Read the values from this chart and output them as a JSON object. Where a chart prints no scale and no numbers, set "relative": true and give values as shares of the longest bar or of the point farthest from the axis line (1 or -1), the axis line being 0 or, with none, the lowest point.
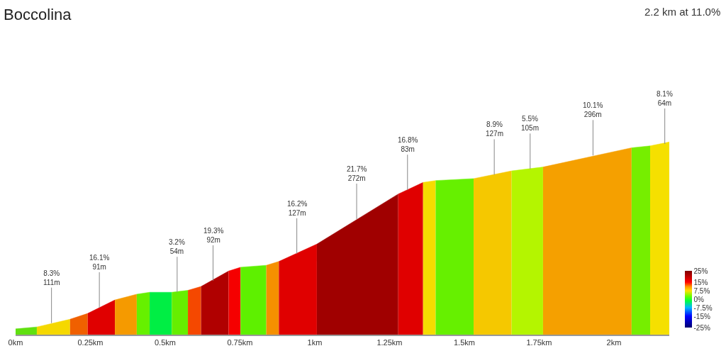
{
  "chart_data": {
    "type": "area",
    "title": "Boccolina",
    "subtitle": "2.2 km at 11.0%",
    "relative": true,
    "xlim": [
      0,
      2.185
    ],
    "xticks": [
      {
        "value": 0,
        "label": "0km"
      },
      {
        "value": 0.25,
        "label": "0.25km"
      },
      {
        "value": 0.5,
        "label": "0.5km"
      },
      {
        "value": 0.75,
        "label": "0.75km"
      },
      {
        "value": 1,
        "label": "1km"
      },
      {
        "value": 1.25,
        "label": "1.25km"
      },
      {
        "value": 1.5,
        "label": "1.5km"
      },
      {
        "value": 1.75,
        "label": "1.75km"
      },
      {
        "value": 2,
        "label": "2km"
      }
    ],
    "series": [
      {
        "color": "#60e010",
        "x": [
          0,
          0.071
        ],
        "values": [
          0.03,
          0.04
        ]
      },
      {
        "color": "#f5d800",
        "x": [
          0.071,
          0.182
        ],
        "values": [
          0.04,
          0.08
        ]
      },
      {
        "color": "#f06000",
        "x": [
          0.182,
          0.241
        ],
        "values": [
          0.08,
          0.11
        ]
      },
      {
        "color": "#e00000",
        "x": [
          0.241,
          0.332
        ],
        "values": [
          0.11,
          0.18
        ]
      },
      {
        "color": "#f59a00",
        "x": [
          0.332,
          0.405
        ],
        "values": [
          0.18,
          0.21
        ]
      },
      {
        "color": "#66f000",
        "x": [
          0.405,
          0.448
        ],
        "values": [
          0.21,
          0.22
        ]
      },
      {
        "color": "#00ee44",
        "x": [
          0.448,
          0.522
        ],
        "values": [
          0.22,
          0.22
        ]
      },
      {
        "color": "#66ee00",
        "x": [
          0.522,
          0.576
        ],
        "values": [
          0.22,
          0.23
        ]
      },
      {
        "color": "#f54800",
        "x": [
          0.576,
          0.62
        ],
        "values": [
          0.23,
          0.25
        ]
      },
      {
        "color": "#b00000",
        "x": [
          0.62,
          0.712
        ],
        "values": [
          0.25,
          0.33
        ]
      },
      {
        "color": "#f50000",
        "x": [
          0.712,
          0.752
        ],
        "values": [
          0.33,
          0.35
        ]
      },
      {
        "color": "#5ef000",
        "x": [
          0.752,
          0.838
        ],
        "values": [
          0.35,
          0.36
        ]
      },
      {
        "color": "#f59000",
        "x": [
          0.838,
          0.88
        ],
        "values": [
          0.36,
          0.38
        ]
      },
      {
        "color": "#e00000",
        "x": [
          0.88,
          1.007
        ],
        "values": [
          0.38,
          0.47
        ]
      },
      {
        "color": "#a00000",
        "x": [
          1.007,
          1.279
        ],
        "values": [
          0.47,
          0.73
        ]
      },
      {
        "color": "#e00000",
        "x": [
          1.279,
          1.362
        ],
        "values": [
          0.73,
          0.79
        ]
      },
      {
        "color": "#f5dc00",
        "x": [
          1.362,
          1.404
        ],
        "values": [
          0.79,
          0.8
        ]
      },
      {
        "color": "#66f000",
        "x": [
          1.404,
          1.531
        ],
        "values": [
          0.8,
          0.81
        ]
      },
      {
        "color": "#f5c800",
        "x": [
          1.531,
          1.658
        ],
        "values": [
          0.81,
          0.85
        ]
      },
      {
        "color": "#b4f500",
        "x": [
          1.658,
          1.763
        ],
        "values": [
          0.85,
          0.87
        ]
      },
      {
        "color": "#f5a000",
        "x": [
          1.763,
          2.059
        ],
        "values": [
          0.87,
          0.97
        ]
      },
      {
        "color": "#76ee00",
        "x": [
          2.059,
          2.121
        ],
        "values": [
          0.97,
          0.98
        ]
      },
      {
        "color": "#f5e000",
        "x": [
          2.121,
          2.185
        ],
        "values": [
          0.98,
          1
        ]
      }
    ],
    "annotations": [
      {
        "text": "8.3%\n111m",
        "x": 0.12,
        "y": 0.06
      },
      {
        "text": "16.1%\n91m",
        "x": 0.28,
        "y": 0.14
      },
      {
        "text": "3.2%\n54m",
        "x": 0.54,
        "y": 0.22
      },
      {
        "text": "19.3%\n92m",
        "x": 0.66,
        "y": 0.28
      },
      {
        "text": "16.2%\n127m",
        "x": 0.94,
        "y": 0.42
      },
      {
        "text": "21.7%\n272m",
        "x": 1.14,
        "y": 0.6
      },
      {
        "text": "16.8%\n83m",
        "x": 1.31,
        "y": 0.75
      },
      {
        "text": "8.9%\n127m",
        "x": 1.6,
        "y": 0.83
      },
      {
        "text": "5.5%\n105m",
        "x": 1.72,
        "y": 0.86
      },
      {
        "text": "10.1%\n296m",
        "x": 1.93,
        "y": 0.93
      },
      {
        "text": "8.1%\n64m",
        "x": 2.17,
        "y": 0.99
      }
    ],
    "clim": [
      -25,
      25
    ],
    "cticks": [
      {
        "value": 25,
        "label": "25%"
      },
      {
        "value": 15,
        "label": "15%"
      },
      {
        "value": 7.5,
        "label": "7.5%"
      },
      {
        "value": 0,
        "label": "0%"
      },
      {
        "value": -7.5,
        "label": "-7.5%"
      },
      {
        "value": -15,
        "label": "-15%"
      },
      {
        "value": -25,
        "label": "-25%"
      }
    ]
  }
}
